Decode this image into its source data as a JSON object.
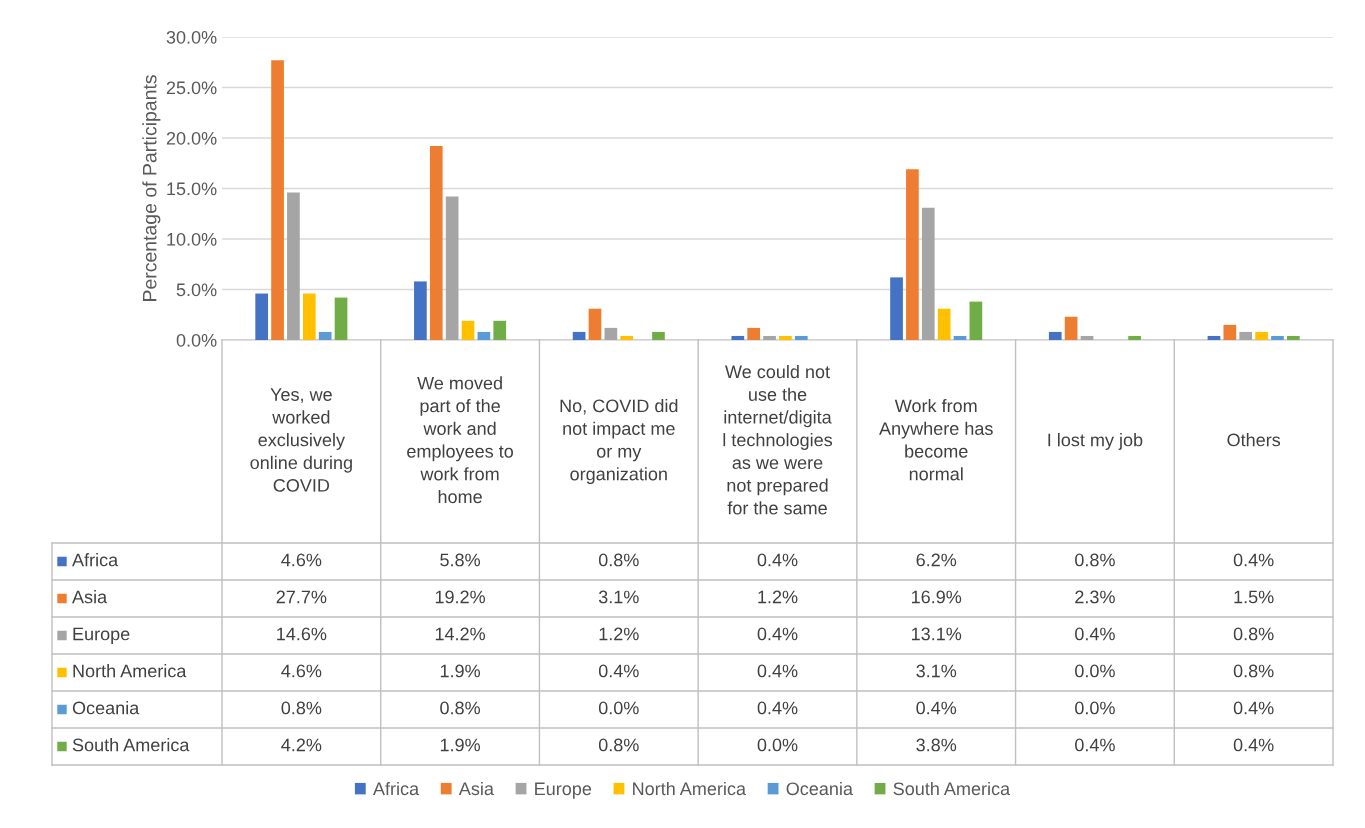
{
  "chart_data": {
    "type": "bar",
    "ylabel": "Percentage of Participants",
    "categories": [
      "Yes, we\nworked\nexclusively\nonline during\nCOVID",
      "We moved\npart of the\nwork and\nemployees to\nwork from\nhome",
      "No, COVID did\nnot impact me\nor my\norganization",
      "We could not\nuse the\ninternet/digita\nl technologies\nas we were\nnot prepared\nfor the same",
      "Work from\nAnywhere has\nbecome\nnormal",
      "I lost my job",
      "Others"
    ],
    "series": [
      {
        "name": "Africa",
        "color": "#4472c4",
        "values": [
          4.6,
          5.8,
          0.8,
          0.4,
          6.2,
          0.8,
          0.4
        ],
        "value_labels": [
          "4.6%",
          "5.8%",
          "0.8%",
          "0.4%",
          "6.2%",
          "0.8%",
          "0.4%"
        ]
      },
      {
        "name": "Asia",
        "color": "#ed7d31",
        "values": [
          27.7,
          19.2,
          3.1,
          1.2,
          16.9,
          2.3,
          1.5
        ],
        "value_labels": [
          "27.7%",
          "19.2%",
          "3.1%",
          "1.2%",
          "16.9%",
          "2.3%",
          "1.5%"
        ]
      },
      {
        "name": "Europe",
        "color": "#a5a5a5",
        "values": [
          14.6,
          14.2,
          1.2,
          0.4,
          13.1,
          0.4,
          0.8
        ],
        "value_labels": [
          "14.6%",
          "14.2%",
          "1.2%",
          "0.4%",
          "13.1%",
          "0.4%",
          "0.8%"
        ]
      },
      {
        "name": "North America",
        "color": "#ffc000",
        "values": [
          4.6,
          1.9,
          0.4,
          0.4,
          3.1,
          0.0,
          0.8
        ],
        "value_labels": [
          "4.6%",
          "1.9%",
          "0.4%",
          "0.4%",
          "3.1%",
          "0.0%",
          "0.8%"
        ]
      },
      {
        "name": "Oceania",
        "color": "#5b9bd5",
        "values": [
          0.8,
          0.8,
          0.0,
          0.4,
          0.4,
          0.0,
          0.4
        ],
        "value_labels": [
          "0.8%",
          "0.8%",
          "0.0%",
          "0.4%",
          "0.4%",
          "0.0%",
          "0.4%"
        ]
      },
      {
        "name": "South America",
        "color": "#70ad47",
        "values": [
          4.2,
          1.9,
          0.8,
          0.0,
          3.8,
          0.4,
          0.4
        ],
        "value_labels": [
          "4.2%",
          "1.9%",
          "0.8%",
          "0.0%",
          "3.8%",
          "0.4%",
          "0.4%"
        ]
      }
    ],
    "ylim": [
      0,
      30
    ],
    "yticks": [
      {
        "value": 0,
        "label": "0.0%"
      },
      {
        "value": 5,
        "label": "5.0%"
      },
      {
        "value": 10,
        "label": "10.0%"
      },
      {
        "value": 15,
        "label": "15.0%"
      },
      {
        "value": 20,
        "label": "20.0%"
      },
      {
        "value": 25,
        "label": "25.0%"
      },
      {
        "value": 30,
        "label": "30.0%"
      }
    ],
    "grid": "y",
    "legend": "bottom"
  }
}
